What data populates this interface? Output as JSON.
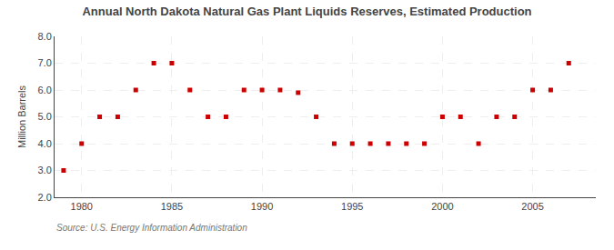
{
  "chart_data": {
    "type": "scatter",
    "title": "Annual North Dakota Natural Gas Plant Liquids Reserves, Estimated Production",
    "ylabel": "Million Barrels",
    "source": "Source: U.S. Energy Information Administration",
    "x": [
      1979,
      1980,
      1981,
      1982,
      1983,
      1984,
      1985,
      1986,
      1987,
      1988,
      1989,
      1990,
      1991,
      1992,
      1993,
      1994,
      1995,
      1996,
      1997,
      1998,
      1999,
      2000,
      2001,
      2002,
      2003,
      2004,
      2005,
      2006,
      2007
    ],
    "values": [
      3.0,
      4.0,
      5.0,
      5.0,
      6.0,
      7.0,
      7.0,
      6.0,
      5.0,
      5.0,
      6.0,
      6.0,
      6.0,
      5.9,
      5.0,
      4.0,
      4.0,
      4.0,
      4.0,
      4.0,
      4.0,
      5.0,
      5.0,
      4.0,
      5.0,
      5.0,
      6.0,
      6.0,
      7.0
    ],
    "color": "#cc0000",
    "marker": "square",
    "xlim": [
      1978.5,
      2008.5
    ],
    "ylim": [
      2.0,
      8.0
    ],
    "xticks": [
      1980,
      1985,
      1990,
      1995,
      2000,
      2005
    ],
    "yticks": [
      {
        "value": 2.0,
        "label": "2.0"
      },
      {
        "value": 3.0,
        "label": "3.0"
      },
      {
        "value": 4.0,
        "label": "4.0"
      },
      {
        "value": 5.0,
        "label": "5.0"
      },
      {
        "value": 6.0,
        "label": "6.0"
      },
      {
        "value": 7.0,
        "label": "7.0"
      },
      {
        "value": 8.0,
        "label": "8.0"
      }
    ],
    "grid": true
  }
}
